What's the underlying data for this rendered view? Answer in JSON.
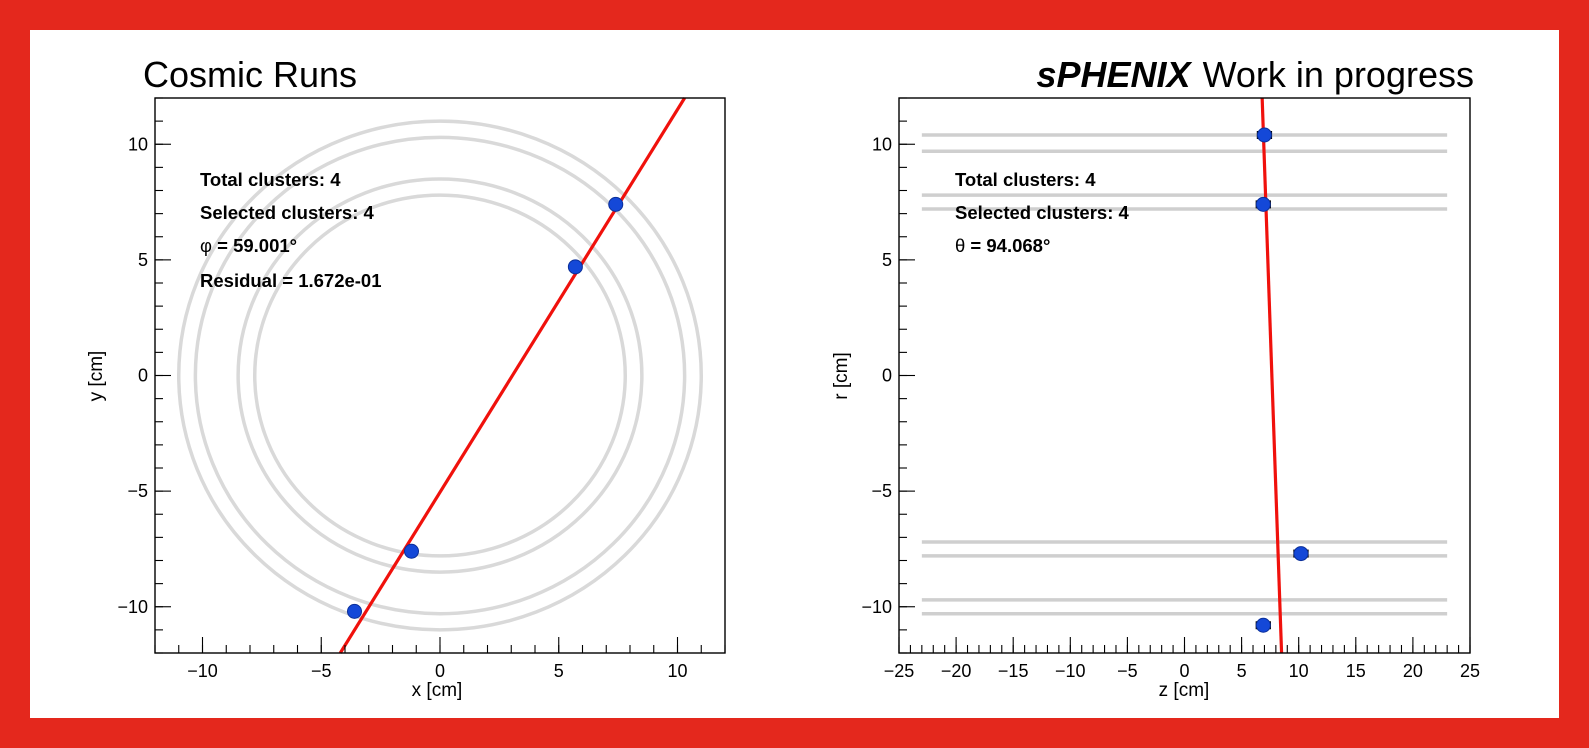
{
  "colors": {
    "frame": "#e4281d",
    "fit_line": "#f0110c",
    "cluster_marker": "#1448d8",
    "ring": "#d9d9d9",
    "layer_line": "#cfcfcf"
  },
  "chart_data": [
    {
      "type": "scatter",
      "title": "Cosmic Runs",
      "xlabel": "x [cm]",
      "ylabel": "y [cm]",
      "xlim": [
        -12,
        12
      ],
      "ylim": [
        -12,
        12
      ],
      "xticks": [
        -10,
        -5,
        0,
        5,
        10
      ],
      "yticks": [
        -10,
        -5,
        0,
        5,
        10
      ],
      "xtick_labels": [
        "−10",
        "−5",
        "0",
        "5",
        "10"
      ],
      "ytick_labels": [
        "−10",
        "−5",
        "0",
        "5",
        "10"
      ],
      "grid": false,
      "series": [
        {
          "type": "scatter",
          "x": [
            7.4,
            5.7,
            -1.2,
            -3.6
          ],
          "y": [
            7.4,
            4.7,
            -7.6,
            -10.2
          ]
        }
      ],
      "fit_line": {
        "x": [
          -4.2,
          10.3
        ],
        "y": [
          -12,
          12
        ]
      },
      "rings_radius": [
        7.8,
        8.5,
        10.3,
        11.0
      ],
      "annotations": [
        {
          "label": "Total clusters: 4"
        },
        {
          "label": "Selected clusters: 4"
        },
        {
          "symbol": "φ",
          "label": " = 59.001°"
        },
        {
          "label": "Residual = 1.672e-01"
        }
      ]
    },
    {
      "type": "scatter",
      "title_bold": "sPHENIX",
      "title_rest": "Work in progress",
      "xlabel": "z [cm]",
      "ylabel": "r [cm]",
      "xlim": [
        -25,
        25
      ],
      "ylim": [
        -12,
        12
      ],
      "xticks": [
        -25,
        -20,
        -15,
        -10,
        -5,
        0,
        5,
        10,
        15,
        20,
        25
      ],
      "yticks": [
        -10,
        -5,
        0,
        5,
        10
      ],
      "xtick_labels": [
        "−25",
        "−20",
        "−15",
        "−10",
        "−5",
        "0",
        "5",
        "10",
        "15",
        "20",
        "25"
      ],
      "ytick_labels": [
        "−10",
        "−5",
        "0",
        "5",
        "10"
      ],
      "grid": false,
      "series": [
        {
          "type": "scatter",
          "x": [
            7.0,
            6.9,
            10.2,
            6.9
          ],
          "y": [
            10.4,
            7.4,
            -7.7,
            -10.8
          ],
          "xerr": [
            0.6,
            0.6,
            0.6,
            0.6
          ]
        }
      ],
      "fit_line": {
        "x": [
          6.8,
          8.5
        ],
        "y": [
          12,
          -12
        ]
      },
      "layer_lines_y": [
        10.4,
        9.7,
        7.8,
        7.2,
        -7.2,
        -7.8,
        -9.7,
        -10.3
      ],
      "layer_lines_x": [
        -23,
        23
      ],
      "annotations": [
        {
          "label": "Total clusters: 4"
        },
        {
          "label": "Selected clusters: 4"
        },
        {
          "symbol": "θ",
          "label": " = 94.068°"
        }
      ]
    }
  ]
}
